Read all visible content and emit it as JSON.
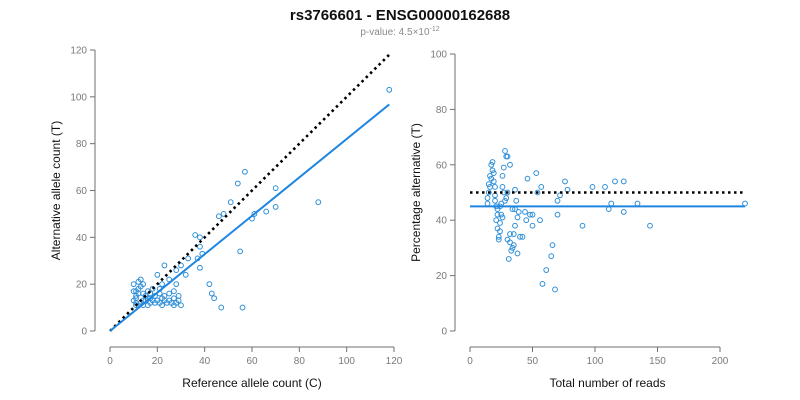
{
  "title": "rs3766601 - ENSG00000162688",
  "subtitle": {
    "prefix": "p-value: 4.5×10",
    "exponent": "-12"
  },
  "colors": {
    "points": "#2f8fd8",
    "fit_line": "#1f86e0",
    "reference_line": "#000000",
    "axis": "#6f6f6f"
  },
  "chart_data": [
    {
      "type": "scatter",
      "name": "allele-counts",
      "xlabel": "Reference allele count (C)",
      "ylabel": "Alternative allele count (T)",
      "xlim": [
        0,
        120
      ],
      "ylim": [
        0,
        120
      ],
      "xticks": [
        0,
        20,
        40,
        60,
        80,
        100,
        120
      ],
      "yticks": [
        0,
        20,
        40,
        60,
        80,
        100,
        120
      ],
      "grid": false,
      "points": [
        [
          118,
          103
        ],
        [
          88,
          55
        ],
        [
          70,
          61
        ],
        [
          70,
          53
        ],
        [
          66,
          51
        ],
        [
          61,
          50
        ],
        [
          60,
          48
        ],
        [
          57,
          68
        ],
        [
          54,
          63
        ],
        [
          51,
          55
        ],
        [
          48,
          50
        ],
        [
          46,
          49
        ],
        [
          38,
          40
        ],
        [
          38,
          36
        ],
        [
          36,
          41
        ],
        [
          39,
          33
        ],
        [
          37,
          31
        ],
        [
          38,
          27
        ],
        [
          33,
          31
        ],
        [
          32,
          24
        ],
        [
          30,
          28
        ],
        [
          28,
          26
        ],
        [
          28,
          20
        ],
        [
          27,
          17
        ],
        [
          25,
          22
        ],
        [
          23,
          28
        ],
        [
          22,
          20
        ],
        [
          22,
          14
        ],
        [
          21,
          18
        ],
        [
          20,
          24
        ],
        [
          18,
          18
        ],
        [
          17,
          14
        ],
        [
          16,
          17
        ],
        [
          15,
          15
        ],
        [
          14,
          20
        ],
        [
          14,
          16
        ],
        [
          14,
          13
        ],
        [
          13,
          19
        ],
        [
          13,
          22
        ],
        [
          12,
          21
        ],
        [
          12,
          18
        ],
        [
          12,
          16
        ],
        [
          11,
          17
        ],
        [
          11,
          15
        ],
        [
          11,
          14
        ],
        [
          11,
          12
        ],
        [
          11,
          11
        ],
        [
          10,
          20
        ],
        [
          10,
          17
        ],
        [
          10,
          13
        ],
        [
          12,
          11
        ],
        [
          13,
          12
        ],
        [
          14,
          11
        ],
        [
          15,
          13
        ],
        [
          16,
          11
        ],
        [
          17,
          12
        ],
        [
          18,
          13
        ],
        [
          19,
          12
        ],
        [
          20,
          13
        ],
        [
          21,
          12
        ],
        [
          22,
          11
        ],
        [
          23,
          13
        ],
        [
          24,
          12
        ],
        [
          25,
          13
        ],
        [
          26,
          12
        ],
        [
          27,
          11
        ],
        [
          28,
          12
        ],
        [
          29,
          13
        ],
        [
          30,
          11
        ],
        [
          29,
          15
        ],
        [
          27,
          14
        ],
        [
          25,
          16
        ],
        [
          23,
          15
        ],
        [
          21,
          16
        ],
        [
          19,
          15
        ],
        [
          17,
          16
        ],
        [
          16,
          14
        ],
        [
          42,
          20
        ],
        [
          43,
          16
        ],
        [
          44,
          14
        ],
        [
          47,
          10
        ],
        [
          56,
          10
        ],
        [
          55,
          34
        ]
      ],
      "reference_line": {
        "slope": 1.0,
        "intercept": 0,
        "x_range": [
          0,
          118
        ]
      },
      "fit_line": {
        "slope": 0.82,
        "intercept": 0,
        "x_range": [
          0,
          118
        ]
      }
    },
    {
      "type": "scatter",
      "name": "percentage-alternative",
      "xlabel": "Total number of reads",
      "ylabel": "Percentage alternative (T)",
      "xlim": [
        0,
        220
      ],
      "ylim": [
        0,
        100
      ],
      "xticks": [
        0,
        50,
        100,
        150,
        200
      ],
      "yticks": [
        0,
        20,
        40,
        60,
        80,
        100
      ],
      "grid": false,
      "points": [
        [
          220,
          46
        ],
        [
          144,
          38
        ],
        [
          134,
          46
        ],
        [
          123,
          54
        ],
        [
          123,
          43
        ],
        [
          116,
          54
        ],
        [
          113,
          46
        ],
        [
          111,
          44
        ],
        [
          108,
          52
        ],
        [
          98,
          52
        ],
        [
          90,
          38
        ],
        [
          78,
          51
        ],
        [
          76,
          54
        ],
        [
          72,
          49
        ],
        [
          70,
          42
        ],
        [
          70,
          47
        ],
        [
          68,
          15
        ],
        [
          65,
          27
        ],
        [
          66,
          31
        ],
        [
          61,
          22
        ],
        [
          58,
          17
        ],
        [
          56,
          40
        ],
        [
          57,
          52
        ],
        [
          53,
          57
        ],
        [
          54,
          50
        ],
        [
          50,
          42
        ],
        [
          50,
          38
        ],
        [
          48,
          42
        ],
        [
          46,
          55
        ],
        [
          45,
          40
        ],
        [
          44,
          43
        ],
        [
          42,
          34
        ],
        [
          40,
          34
        ],
        [
          39,
          43
        ],
        [
          38,
          28
        ],
        [
          38,
          41
        ],
        [
          37,
          47
        ],
        [
          36,
          51
        ],
        [
          36,
          44
        ],
        [
          35,
          35
        ],
        [
          35,
          31
        ],
        [
          34,
          30
        ],
        [
          33,
          29
        ],
        [
          32,
          32
        ],
        [
          32,
          35
        ],
        [
          31,
          26
        ],
        [
          30,
          33
        ],
        [
          30,
          50
        ],
        [
          29,
          48
        ],
        [
          29,
          63
        ],
        [
          28,
          65
        ],
        [
          27,
          59
        ],
        [
          26,
          56
        ],
        [
          26,
          52
        ],
        [
          25,
          46
        ],
        [
          25,
          42
        ],
        [
          24,
          39
        ],
        [
          24,
          36
        ],
        [
          23,
          34
        ],
        [
          23,
          33
        ],
        [
          22,
          44
        ],
        [
          22,
          42
        ],
        [
          21,
          40
        ],
        [
          21,
          45
        ],
        [
          20,
          47
        ],
        [
          20,
          49
        ],
        [
          20,
          52
        ],
        [
          19,
          54
        ],
        [
          19,
          57
        ],
        [
          18,
          58
        ],
        [
          18,
          61
        ],
        [
          17,
          60
        ],
        [
          17,
          55
        ],
        [
          16,
          56
        ],
        [
          16,
          52
        ],
        [
          15,
          53
        ],
        [
          15,
          50
        ],
        [
          14,
          46
        ],
        [
          14,
          48
        ],
        [
          22,
          37
        ],
        [
          24,
          45
        ],
        [
          26,
          41
        ],
        [
          30,
          63
        ],
        [
          32,
          60
        ],
        [
          34,
          44
        ],
        [
          36,
          38
        ],
        [
          28,
          47
        ],
        [
          27,
          50
        ]
      ],
      "reference_line": {
        "y": 50,
        "x_range": [
          0,
          220
        ]
      },
      "fit_line": {
        "y": 45,
        "x_range": [
          0,
          220
        ]
      }
    }
  ]
}
